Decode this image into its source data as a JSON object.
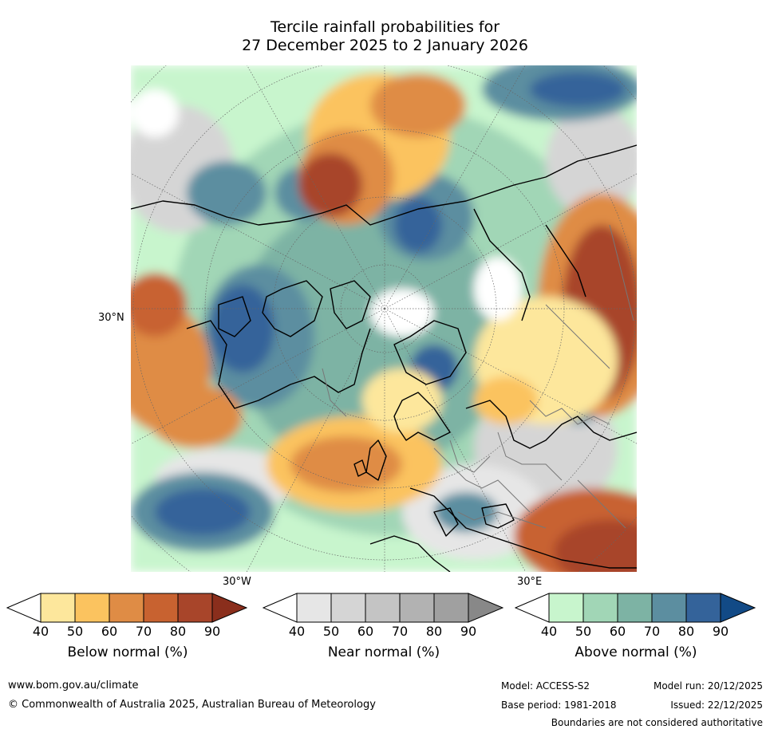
{
  "title_line1": "Tercile rainfall probabilities for",
  "title_line2": "27 December 2025 to 2 January 2026",
  "ticks": {
    "lat": "30°N",
    "lon_w": "30°W",
    "lon_e": "30°E"
  },
  "legends": [
    {
      "id": "below",
      "label": "Below normal (%)",
      "ticks": [
        "40",
        "50",
        "60",
        "70",
        "80",
        "90"
      ],
      "colors": [
        "#fde79c",
        "#fbc35f",
        "#df8c45",
        "#c86230",
        "#a8452a",
        "#8a2e1c"
      ]
    },
    {
      "id": "near",
      "label": "Near normal (%)",
      "ticks": [
        "40",
        "50",
        "60",
        "70",
        "80",
        "90"
      ],
      "colors": [
        "#e6e6e6",
        "#d5d5d5",
        "#c4c4c4",
        "#b2b2b2",
        "#a0a0a0",
        "#888888"
      ]
    },
    {
      "id": "above",
      "label": "Above normal (%)",
      "ticks": [
        "40",
        "50",
        "60",
        "70",
        "80",
        "90"
      ],
      "colors": [
        "#c8f5cd",
        "#a1d6b6",
        "#7db3a4",
        "#5c8ea0",
        "#34639a",
        "#124a86"
      ]
    }
  ],
  "footer": {
    "url": "www.bom.gov.au/climate",
    "copyright": "© Commonwealth of Australia 2025, Australian Bureau of Meteorology",
    "model": "Model: ACCESS-S2",
    "model_run": "Model run: 20/12/2025",
    "base_period": "Base period: 1981-2018",
    "issued": "Issued: 22/12/2025",
    "disclaimer": "Boundaries are not considered authoritative"
  }
}
